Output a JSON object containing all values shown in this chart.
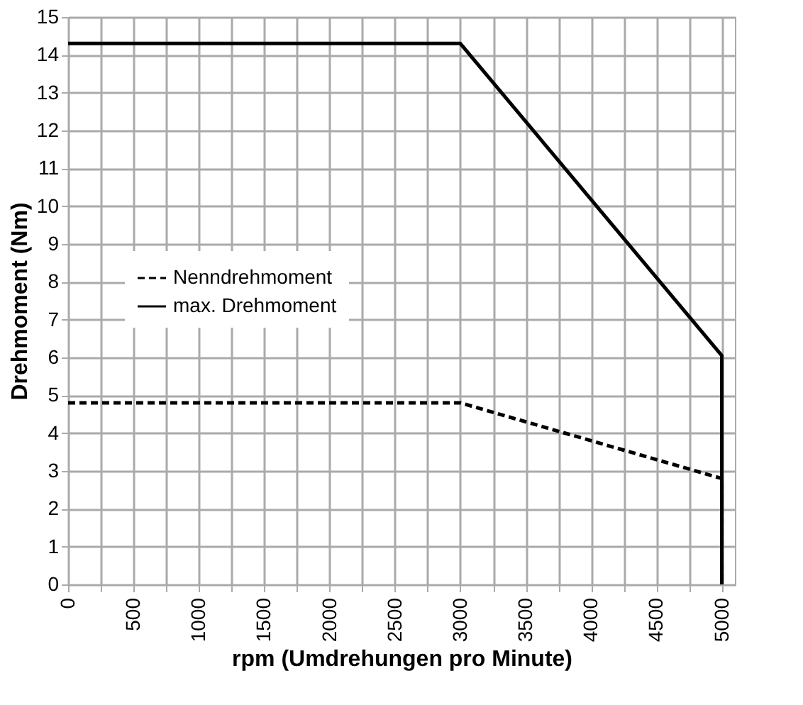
{
  "chart_data": {
    "type": "line",
    "xlabel": "rpm (Umdrehungen pro Minute)",
    "ylabel": "Drehmoment (Nm)",
    "xlim": [
      0,
      5100
    ],
    "ylim": [
      0,
      15
    ],
    "xticks": [
      0,
      {
        "value": 250,
        "label": null
      },
      500,
      {
        "value": 750,
        "label": null
      },
      1000,
      {
        "value": 1250,
        "label": null
      },
      1500,
      {
        "value": 1750,
        "label": null
      },
      2000,
      {
        "value": 2250,
        "label": null
      },
      2500,
      {
        "value": 2750,
        "label": null
      },
      3000,
      {
        "value": 3250,
        "label": null
      },
      3500,
      {
        "value": 3750,
        "label": null
      },
      4000,
      {
        "value": 4250,
        "label": null
      },
      4500,
      {
        "value": 4750,
        "label": null
      },
      5000
    ],
    "yticks": [
      0,
      1,
      2,
      3,
      4,
      5,
      6,
      7,
      8,
      9,
      10,
      11,
      12,
      13,
      14,
      15
    ],
    "grid": true,
    "legend": "left",
    "marker": "none",
    "series": [
      {
        "name": "Nenndrehmoment",
        "color": "#000000",
        "line_style": "dashed",
        "x": [
          0,
          3000,
          5000,
          5000
        ],
        "values": [
          4.8,
          4.8,
          2.8,
          0
        ]
      },
      {
        "name": "max. Drehmoment",
        "color": "#000000",
        "line_style": "solid",
        "x": [
          0,
          3000,
          5000,
          5000
        ],
        "values": [
          14.3,
          14.3,
          6.05,
          0
        ]
      }
    ]
  }
}
